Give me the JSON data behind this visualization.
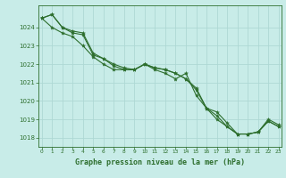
{
  "x": [
    0,
    1,
    2,
    3,
    4,
    5,
    6,
    7,
    8,
    9,
    10,
    11,
    12,
    13,
    14,
    15,
    16,
    17,
    18,
    19,
    20,
    21,
    22,
    23
  ],
  "line1": [
    1024.5,
    1024.7,
    1024.0,
    1023.7,
    1023.6,
    1022.5,
    1022.3,
    1021.9,
    1021.7,
    1021.7,
    1022.0,
    1021.8,
    1021.7,
    1021.5,
    1021.2,
    1020.6,
    1019.6,
    1019.2,
    1018.6,
    1018.2,
    1018.2,
    1018.3,
    1018.9,
    1018.6
  ],
  "line2": [
    1024.5,
    1024.0,
    1023.7,
    1023.5,
    1023.0,
    1022.4,
    1022.0,
    1021.7,
    1021.7,
    1021.7,
    1022.0,
    1021.7,
    1021.5,
    1021.2,
    1021.5,
    1020.3,
    1019.6,
    1019.0,
    1018.6,
    1018.2,
    1018.2,
    1018.3,
    1018.9,
    1018.6
  ],
  "line3": [
    1024.5,
    1024.7,
    1024.0,
    1023.8,
    1023.7,
    1022.6,
    1022.3,
    1022.0,
    1021.8,
    1021.7,
    1022.0,
    1021.8,
    1021.7,
    1021.5,
    1021.2,
    1020.7,
    1019.6,
    1019.4,
    1018.8,
    1018.2,
    1018.2,
    1018.3,
    1019.0,
    1018.7
  ],
  "bg_color": "#c8ece8",
  "line_color": "#2d6e2d",
  "grid_color": "#aed8d4",
  "text_color": "#2d6e2d",
  "xlabel": "Graphe pression niveau de la mer (hPa)",
  "ylim": [
    1017.5,
    1025.2
  ],
  "yticks": [
    1018,
    1019,
    1020,
    1021,
    1022,
    1023,
    1024
  ],
  "figwidth": 3.2,
  "figheight": 2.0,
  "dpi": 100
}
